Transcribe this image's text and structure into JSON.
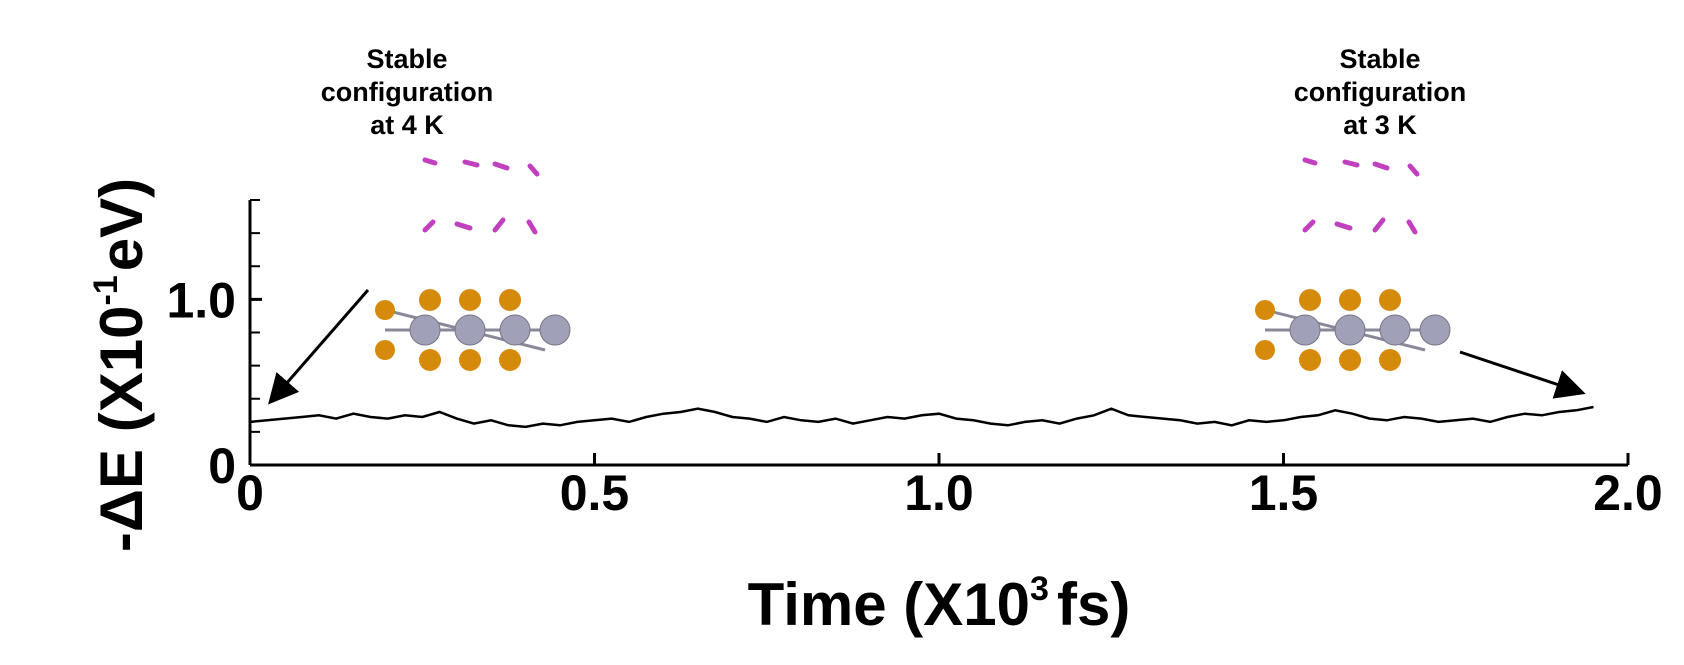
{
  "chart_data": {
    "type": "line",
    "x_label": "Time (X10",
    "x_label_sup": "3",
    "x_label_end": "fs)",
    "y_label": "-ΔE (X10",
    "y_label_sup": "-1",
    "y_label_end": "eV)",
    "annotations": [
      [
        "Stable",
        "configuration",
        "at 4 K"
      ],
      [
        "Stable",
        "configuration",
        "at 3 K"
      ]
    ],
    "xlim": [
      0,
      2.0
    ],
    "xticks": [
      0,
      0.5,
      {
        "value": 1,
        "label": "1.0"
      },
      1.5,
      {
        "value": 2,
        "label": "2.0"
      }
    ],
    "ylim": [
      0,
      1.6
    ],
    "yticks": [
      0,
      {
        "value": 1,
        "label": "1.0"
      }
    ],
    "yminor_ticks": [
      0.2,
      0.4,
      0.6,
      0.8,
      1.2,
      1.4,
      1.6
    ],
    "series": [
      {
        "color": "#000000",
        "x": [
          0,
          0.025,
          0.05,
          0.075,
          0.1,
          0.125,
          0.15,
          0.175,
          0.2,
          0.225,
          0.25,
          0.275,
          0.3,
          0.325,
          0.35,
          0.375,
          0.4,
          0.425,
          0.45,
          0.475,
          0.5,
          0.525,
          0.55,
          0.575,
          0.6,
          0.625,
          0.65,
          0.675,
          0.7,
          0.725,
          0.75,
          0.775,
          0.8,
          0.825,
          0.85,
          0.875,
          0.9,
          0.925,
          0.95,
          0.975,
          1.0,
          1.025,
          1.05,
          1.075,
          1.1,
          1.125,
          1.15,
          1.175,
          1.2,
          1.225,
          1.25,
          1.275,
          1.3,
          1.325,
          1.35,
          1.375,
          1.4,
          1.425,
          1.45,
          1.475,
          1.5,
          1.525,
          1.55,
          1.575,
          1.6,
          1.625,
          1.65,
          1.675,
          1.7,
          1.725,
          1.75,
          1.775,
          1.8,
          1.825,
          1.85,
          1.875,
          1.9,
          1.925,
          1.95
        ],
        "values": [
          0.26,
          0.27,
          0.28,
          0.29,
          0.3,
          0.28,
          0.31,
          0.29,
          0.28,
          0.3,
          0.29,
          0.32,
          0.28,
          0.25,
          0.27,
          0.24,
          0.23,
          0.25,
          0.24,
          0.26,
          0.27,
          0.28,
          0.26,
          0.29,
          0.31,
          0.32,
          0.34,
          0.32,
          0.29,
          0.28,
          0.26,
          0.29,
          0.27,
          0.26,
          0.28,
          0.25,
          0.27,
          0.29,
          0.28,
          0.3,
          0.31,
          0.28,
          0.27,
          0.25,
          0.24,
          0.26,
          0.27,
          0.25,
          0.28,
          0.3,
          0.34,
          0.3,
          0.29,
          0.28,
          0.27,
          0.25,
          0.26,
          0.24,
          0.27,
          0.26,
          0.27,
          0.29,
          0.3,
          0.33,
          0.31,
          0.28,
          0.27,
          0.29,
          0.28,
          0.26,
          0.27,
          0.28,
          0.26,
          0.29,
          0.31,
          0.3,
          0.32,
          0.33,
          0.35
        ]
      }
    ]
  }
}
